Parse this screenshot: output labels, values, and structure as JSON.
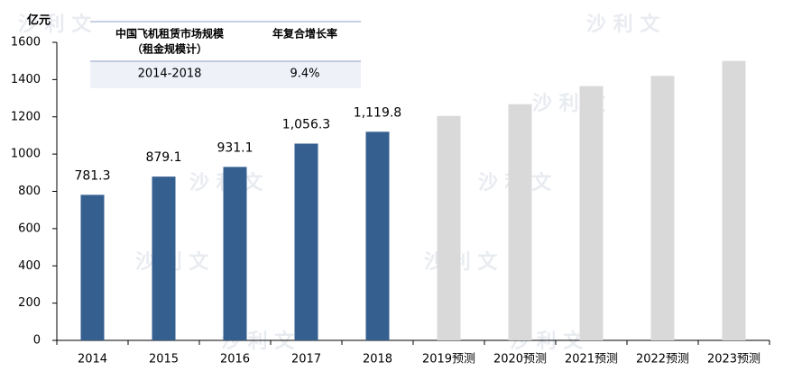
{
  "chart_data": {
    "type": "bar",
    "unit_label": "亿元",
    "categories": [
      "2014",
      "2015",
      "2016",
      "2017",
      "2018",
      "2019预测",
      "2020预测",
      "2021预测",
      "2022预测",
      "2023预测"
    ],
    "values": [
      781.3,
      879.1,
      931.1,
      1056.3,
      1119.8,
      1205,
      1268,
      1365,
      1420,
      1500
    ],
    "value_labels": [
      "781.3",
      "879.1",
      "931.1",
      "1,056.3",
      "1,119.8",
      null,
      null,
      null,
      null,
      null
    ],
    "colors": [
      "#355f8f",
      "#355f8f",
      "#355f8f",
      "#355f8f",
      "#355f8f",
      "#d9d9d9",
      "#d9d9d9",
      "#d9d9d9",
      "#d9d9d9",
      "#d9d9d9"
    ],
    "ylim": [
      0,
      1600
    ],
    "yticks": [
      0,
      200,
      400,
      600,
      800,
      1000,
      1200,
      1400,
      1600
    ],
    "inset_table": {
      "header": [
        "中国飞机租赁市场规模",
        "（租金规模计）",
        "年复合增长率"
      ],
      "row": [
        "2014-2018",
        "9.4%"
      ]
    },
    "watermark": "沙 利 文"
  }
}
